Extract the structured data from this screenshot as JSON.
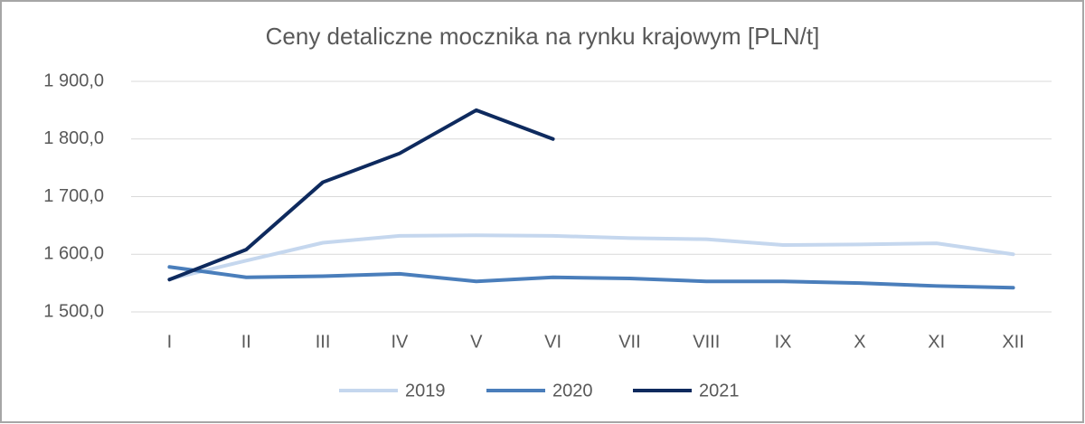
{
  "chart_data": {
    "type": "line",
    "title": "Ceny detaliczne mocznika na rynku krajowym [PLN/t]",
    "categories": [
      "I",
      "II",
      "III",
      "IV",
      "V",
      "VI",
      "VII",
      "VIII",
      "IX",
      "X",
      "XI",
      "XII"
    ],
    "series": [
      {
        "name": "2019",
        "color": "#c5d7ee",
        "values": [
          1557,
          1589,
          1620,
          1632,
          1633,
          1632,
          1628,
          1626,
          1616,
          1617,
          1619,
          1600
        ]
      },
      {
        "name": "2020",
        "color": "#4a7ebb",
        "values": [
          1578,
          1560,
          1562,
          1566,
          1553,
          1560,
          1558,
          1553,
          1553,
          1550,
          1545,
          1542
        ]
      },
      {
        "name": "2021",
        "color": "#0e2a5e",
        "values": [
          1556,
          1608,
          1725,
          1775,
          1850,
          1800,
          null,
          null,
          null,
          null,
          null,
          null
        ]
      }
    ],
    "ylim": [
      1500,
      1900
    ],
    "yticks": [
      {
        "value": 1500,
        "label": "1 500,0"
      },
      {
        "value": 1600,
        "label": "1 600,0"
      },
      {
        "value": 1700,
        "label": "1 700,0"
      },
      {
        "value": 1800,
        "label": "1 800,0"
      },
      {
        "value": 1900,
        "label": "1 900,0"
      }
    ],
    "grid": true,
    "legend": "bottom"
  }
}
